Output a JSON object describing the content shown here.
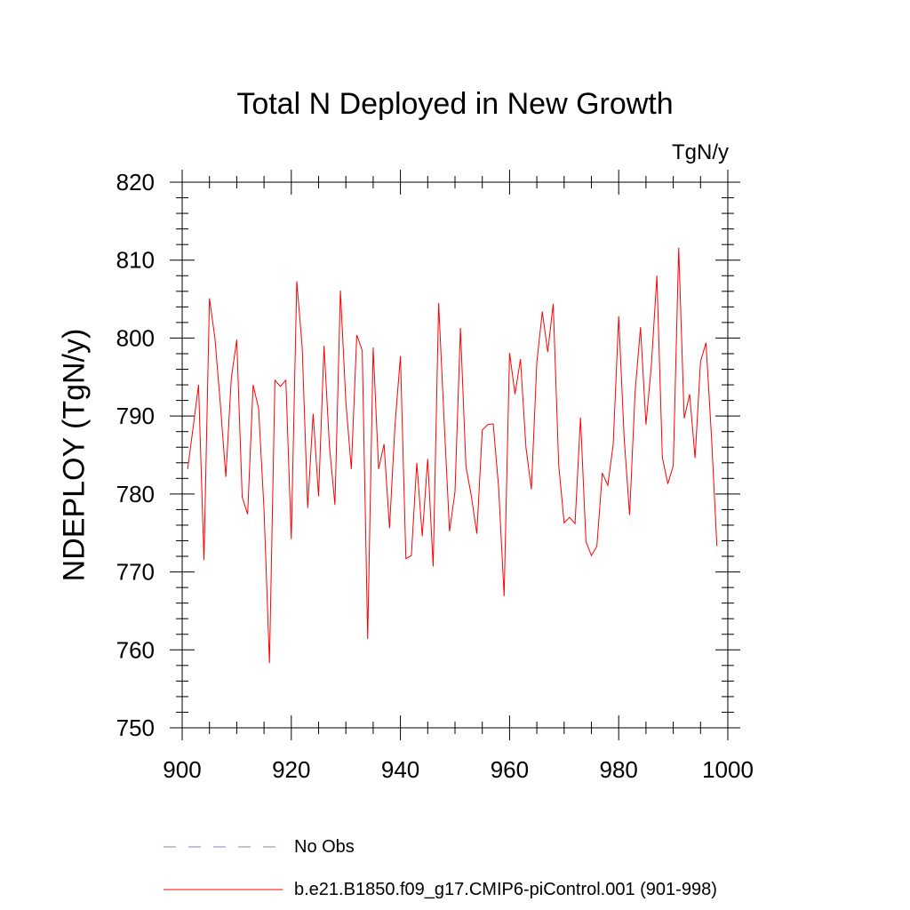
{
  "chart_data": {
    "type": "line",
    "title": "Total N Deployed in New Growth",
    "units": "TgN/y",
    "ylabel": "NDEPLOY  (TgN/y)",
    "xlabel": "",
    "xlim": [
      900,
      1000
    ],
    "ylim": [
      750,
      820
    ],
    "xticks": [
      900,
      920,
      940,
      960,
      980,
      1000
    ],
    "yticks": [
      750,
      760,
      770,
      780,
      790,
      800,
      810,
      820
    ],
    "series": [
      {
        "name": "No Obs",
        "color": "#8080c0",
        "style": "dashed",
        "x": [],
        "values": []
      },
      {
        "name": "b.e21.B1850.f09_g17.CMIP6-piControl.001 (901-998)",
        "color": "#ff0000",
        "style": "solid",
        "x": [
          901,
          902,
          903,
          904,
          905,
          906,
          907,
          908,
          909,
          910,
          911,
          912,
          913,
          914,
          915,
          916,
          917,
          918,
          919,
          920,
          921,
          922,
          923,
          924,
          925,
          926,
          927,
          928,
          929,
          930,
          931,
          932,
          933,
          934,
          935,
          936,
          937,
          938,
          939,
          940,
          941,
          942,
          943,
          944,
          945,
          946,
          947,
          948,
          949,
          950,
          951,
          952,
          953,
          954,
          955,
          956,
          957,
          958,
          959,
          960,
          961,
          962,
          963,
          964,
          965,
          966,
          967,
          968,
          969,
          970,
          971,
          972,
          973,
          974,
          975,
          976,
          977,
          978,
          979,
          980,
          981,
          982,
          983,
          984,
          985,
          986,
          987,
          988,
          989,
          990,
          991,
          992,
          993,
          994,
          995,
          996,
          997,
          998
        ],
        "values": [
          783.2,
          788.5,
          794.0,
          771.5,
          805.1,
          800.0,
          791.5,
          782.2,
          794.8,
          799.8,
          779.6,
          777.4,
          794.0,
          791.0,
          778.0,
          758.3,
          794.6,
          793.8,
          794.6,
          774.2,
          807.3,
          798.8,
          778.2,
          790.3,
          779.7,
          799.0,
          786.0,
          778.6,
          806.1,
          791.8,
          783.2,
          800.4,
          798.4,
          761.4,
          798.8,
          783.2,
          786.4,
          775.6,
          788.8,
          797.7,
          771.7,
          772.1,
          784.0,
          774.6,
          784.5,
          770.7,
          804.5,
          789.5,
          775.2,
          780.3,
          801.3,
          783.6,
          779.7,
          774.9,
          788.2,
          788.9,
          789.0,
          780.8,
          766.9,
          798.1,
          792.8,
          797.3,
          786.0,
          780.6,
          796.9,
          803.4,
          798.2,
          804.4,
          783.8,
          776.3,
          777.0,
          776.2,
          789.8,
          773.9,
          772.1,
          773.3,
          782.7,
          781.1,
          786.4,
          802.8,
          787.2,
          777.3,
          793.0,
          801.4,
          788.9,
          796.6,
          808.0,
          784.7,
          781.3,
          783.6,
          811.6,
          789.7,
          792.8,
          784.6,
          797.0,
          799.4,
          787.4,
          773.3
        ]
      }
    ]
  }
}
